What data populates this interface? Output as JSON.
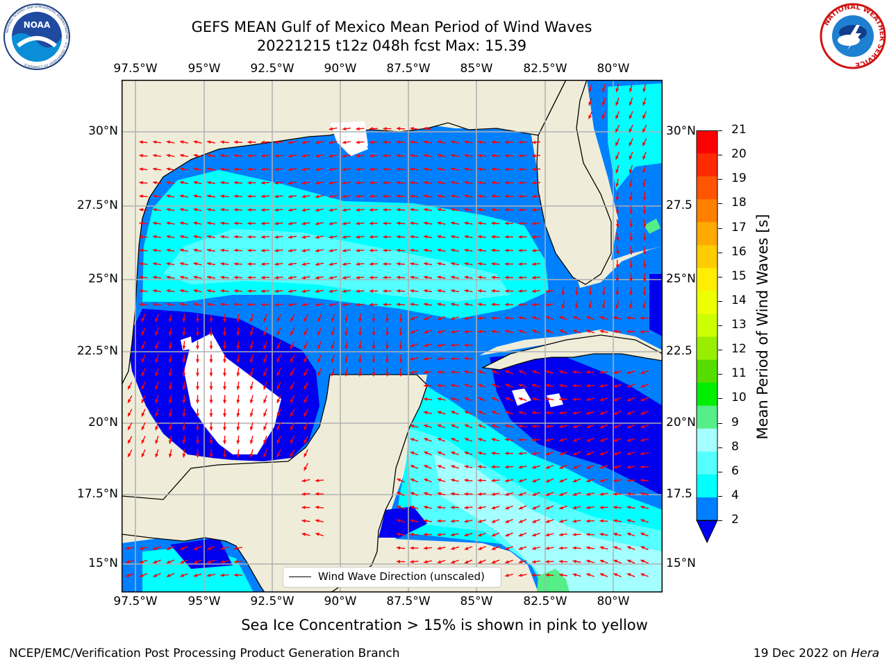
{
  "title": {
    "line1": "GEFS MEAN Gulf of Mexico Mean Period of Wind Waves",
    "line2": "20221215 t12z 048h fcst   Max: 15.39"
  },
  "logos": {
    "left": {
      "name": "NOAA",
      "ring_text": "NATIONAL OCEANIC AND ATMOSPHERIC ADMINISTRATION · U.S. DEPARTMENT OF COMMERCE"
    },
    "right": {
      "ring_text": "NATIONAL WEATHER SERVICE"
    }
  },
  "map": {
    "lon_labels": [
      "97.5°W",
      "95°W",
      "92.5°W",
      "90°W",
      "87.5°W",
      "85°W",
      "82.5°W",
      "80°W"
    ],
    "lat_labels_left": [
      "30°N",
      "27.5°N",
      "25°N",
      "22.5°N",
      "20°N",
      "17.5°N",
      "15°N"
    ],
    "lat_labels_right": [
      "30°N",
      "27.5",
      "25°N",
      "22.5",
      "20°N",
      "17.5",
      "15°N"
    ],
    "legend": "Wind Wave Direction (unscaled)",
    "colors": {
      "land": "#efedd9",
      "ocean_2_4": "#0080ff",
      "ocean_4_6": "#00ffff",
      "ocean_6_8": "#55ffff",
      "ocean_8_9": "#a6ffff",
      "ocean_9_10": "#55ee88",
      "low_period_deep": "#0000ee",
      "arrow": "#ff0000",
      "grid": "#b0b0b0"
    }
  },
  "colorbar": {
    "label": "Mean Period of Wind Waves [s]",
    "ticks": [
      "21",
      "20",
      "19",
      "18",
      "17",
      "16",
      "15",
      "14",
      "13",
      "12",
      "11",
      "10",
      "9",
      "8",
      "6",
      "4",
      "2"
    ],
    "colors": [
      "#ff0000",
      "#ff2a00",
      "#ff5500",
      "#ff7f00",
      "#ffaa00",
      "#ffcc00",
      "#ffee00",
      "#eeff00",
      "#ccff00",
      "#99ee00",
      "#55dd00",
      "#00ee00",
      "#55ee88",
      "#a6ffff",
      "#55ffff",
      "#00ffff",
      "#0080ff",
      "#0000ee"
    ]
  },
  "footer": {
    "note": "Sea Ice Concentration > 15% is shown in pink to yellow",
    "left": "NCEP/EMC/Verification Post Processing Product Generation Branch",
    "right_prefix": "19 Dec 2022 on ",
    "right_host": "Hera"
  }
}
